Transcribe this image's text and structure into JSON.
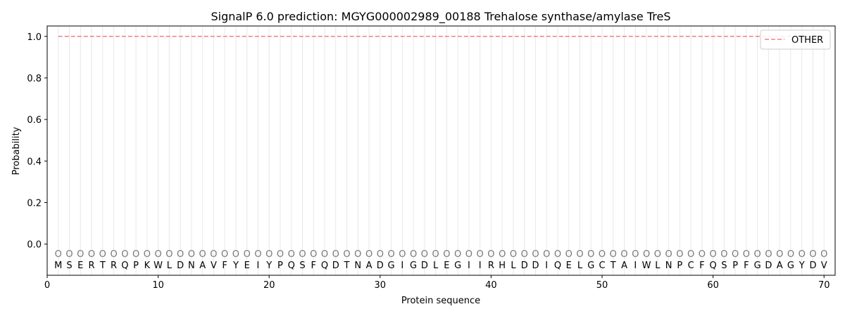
{
  "chart_data": {
    "type": "line",
    "title": "SignalP 6.0 prediction: MGYG000002989_00188 Trehalose synthase/amylase TreS",
    "xlabel": "Protein sequence",
    "ylabel": "Probability",
    "xlim": [
      0,
      71
    ],
    "ylim": [
      -0.15,
      1.05
    ],
    "x_ticks": [
      0,
      10,
      20,
      30,
      40,
      50,
      60,
      70
    ],
    "y_ticks": [
      0.0,
      0.2,
      0.4,
      0.6,
      0.8,
      1.0
    ],
    "y_tick_labels": [
      "0.0",
      "0.2",
      "0.4",
      "0.6",
      "0.8",
      "1.0"
    ],
    "grid": "vertical lines at each residue",
    "legend": {
      "placement": "top-right",
      "entries": [
        "OTHER"
      ]
    },
    "series": [
      {
        "name": "OTHER",
        "color": "#f08080",
        "style": "dashed",
        "x_start": 1,
        "x_end": 70,
        "value": 1.0
      }
    ],
    "sequence": [
      "M",
      "S",
      "E",
      "R",
      "T",
      "R",
      "Q",
      "P",
      "K",
      "W",
      "L",
      "D",
      "N",
      "A",
      "V",
      "F",
      "Y",
      "E",
      "I",
      "Y",
      "P",
      "Q",
      "S",
      "F",
      "Q",
      "D",
      "T",
      "N",
      "A",
      "D",
      "G",
      "I",
      "G",
      "D",
      "L",
      "E",
      "G",
      "I",
      "I",
      "R",
      "H",
      "L",
      "D",
      "D",
      "I",
      "Q",
      "E",
      "L",
      "G",
      "C",
      "T",
      "A",
      "I",
      "W",
      "L",
      "N",
      "P",
      "C",
      "F",
      "Q",
      "S",
      "P",
      "F",
      "G",
      "D",
      "A",
      "G",
      "Y",
      "D",
      "V"
    ],
    "predicted_states": [
      "O",
      "O",
      "O",
      "O",
      "O",
      "O",
      "O",
      "O",
      "O",
      "O",
      "O",
      "O",
      "O",
      "O",
      "O",
      "O",
      "O",
      "O",
      "O",
      "O",
      "O",
      "O",
      "O",
      "O",
      "O",
      "O",
      "O",
      "O",
      "O",
      "O",
      "O",
      "O",
      "O",
      "O",
      "O",
      "O",
      "O",
      "O",
      "O",
      "O",
      "O",
      "O",
      "O",
      "O",
      "O",
      "O",
      "O",
      "O",
      "O",
      "O",
      "O",
      "O",
      "O",
      "O",
      "O",
      "O",
      "O",
      "O",
      "O",
      "O",
      "O",
      "O",
      "O",
      "O",
      "O",
      "O",
      "O",
      "O",
      "O",
      "O"
    ]
  }
}
